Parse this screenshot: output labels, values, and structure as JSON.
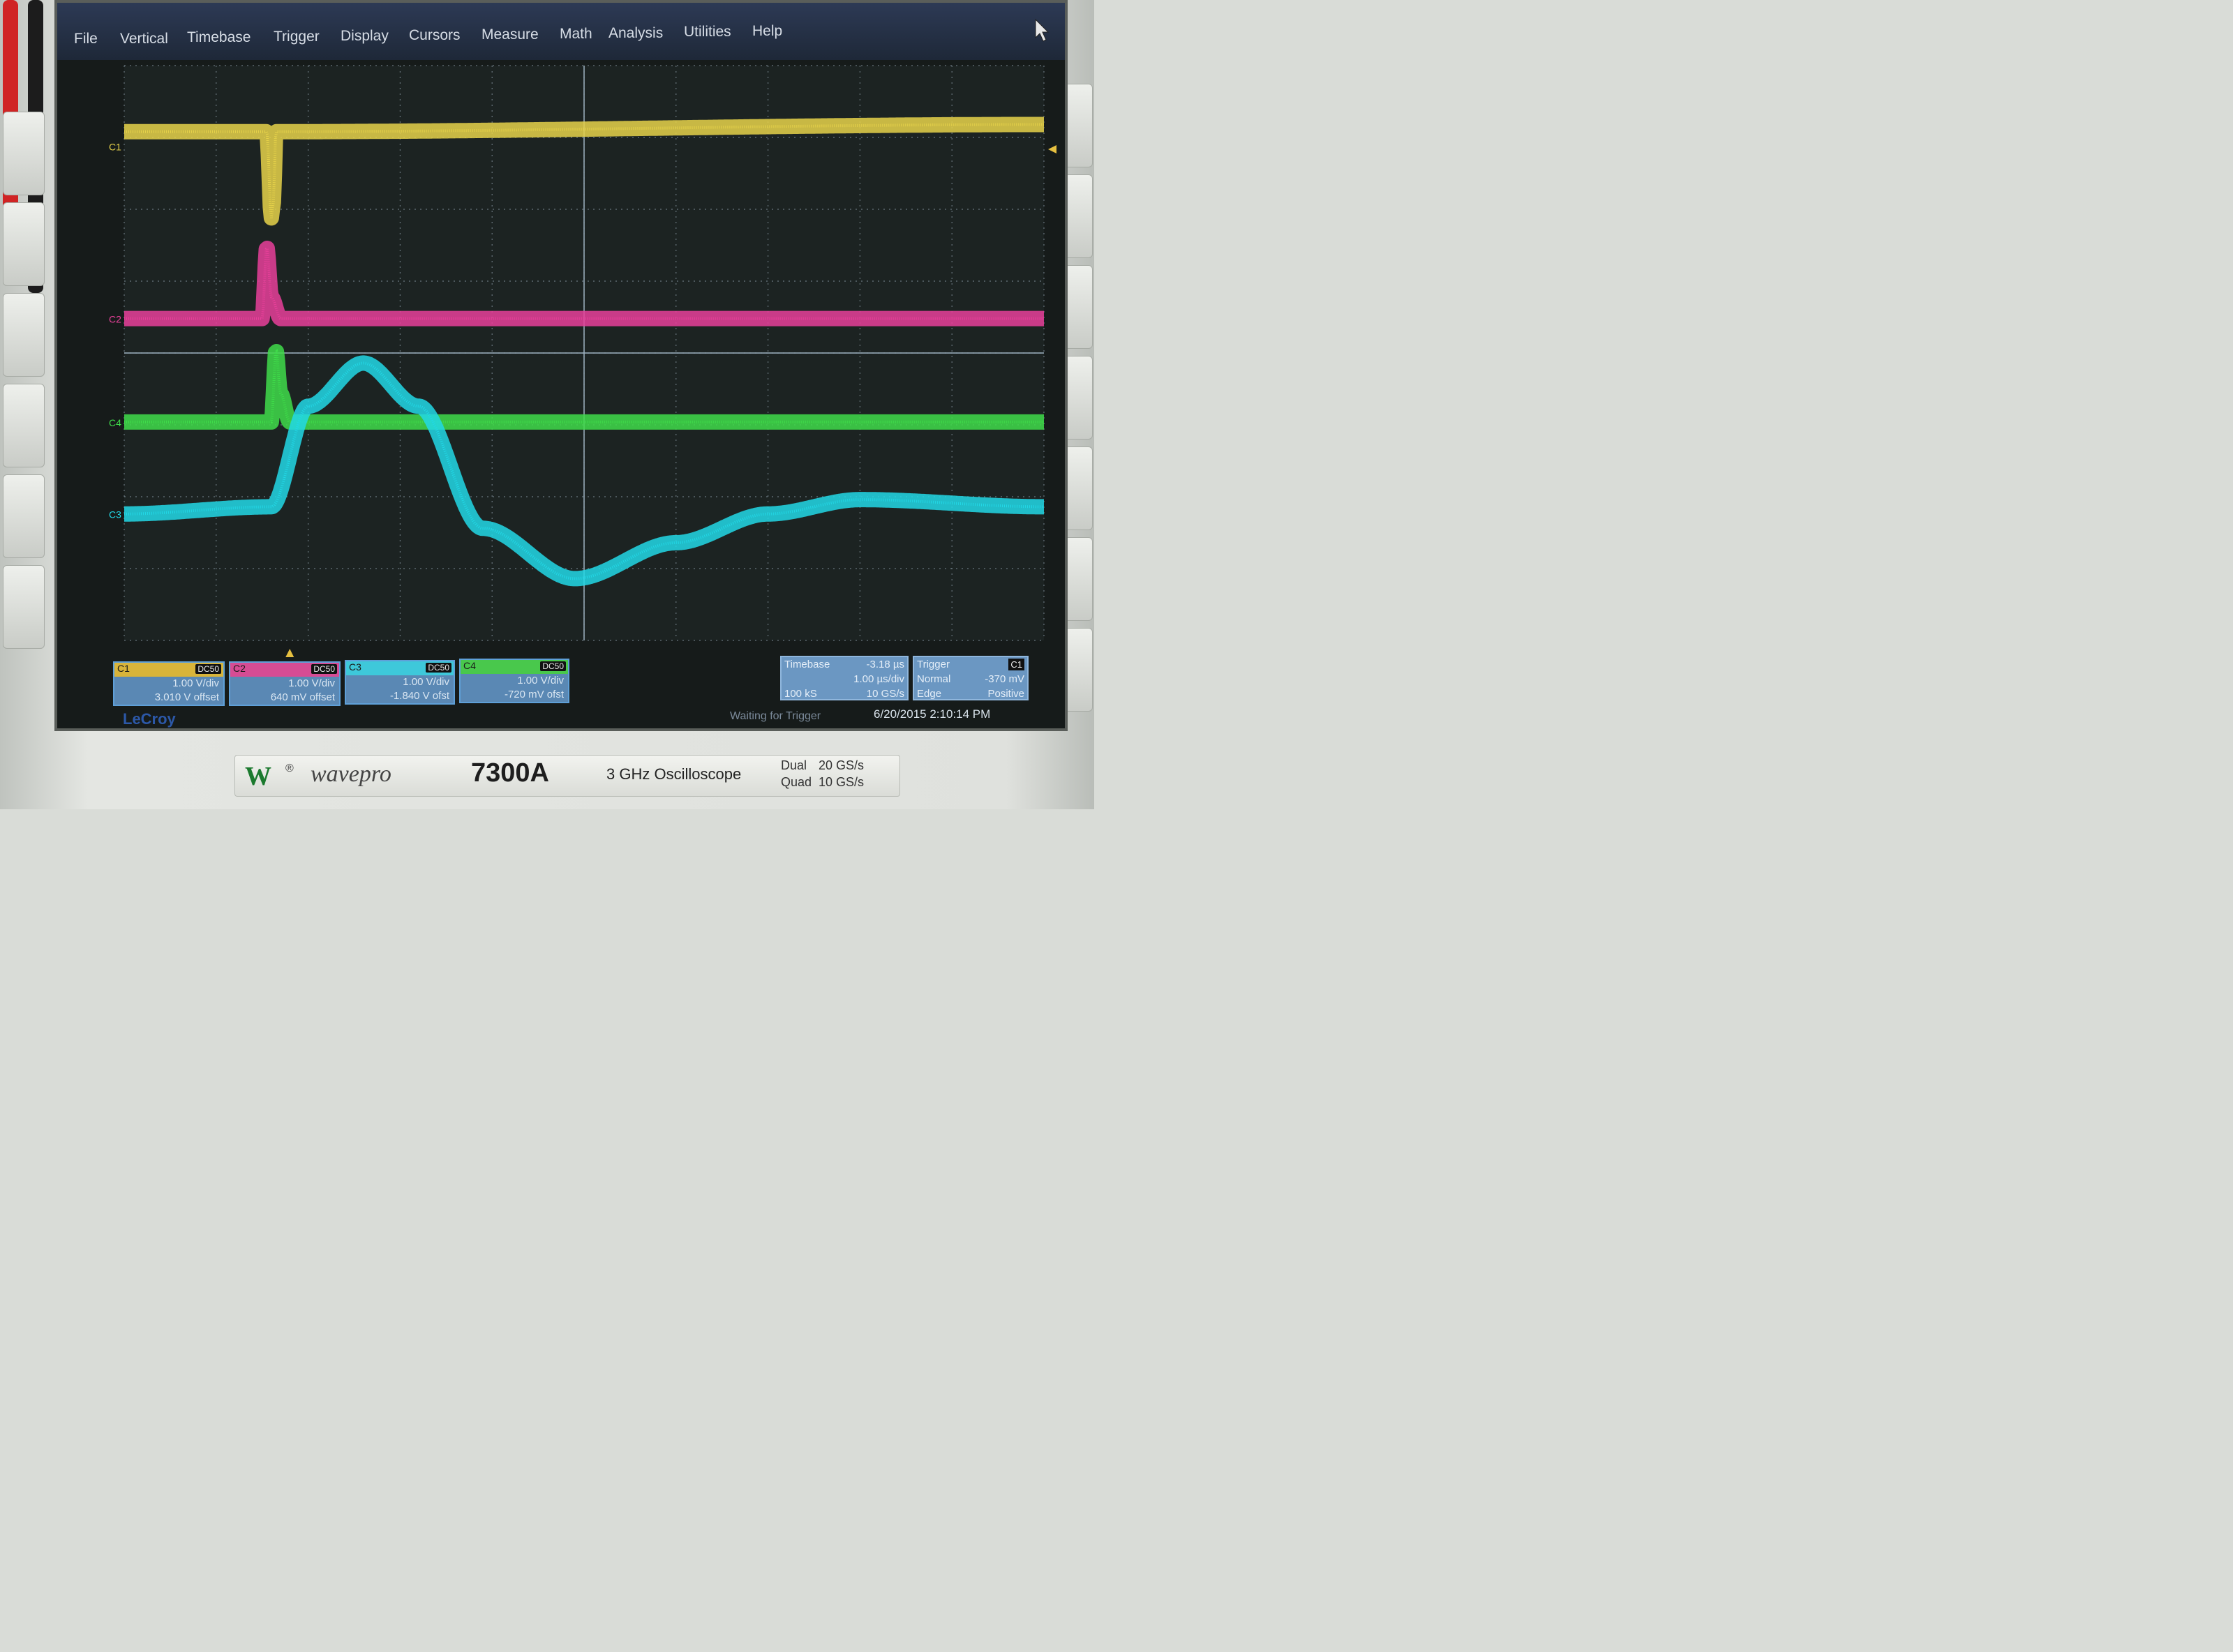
{
  "menu": {
    "items": [
      "File",
      "Vertical",
      "Timebase",
      "Trigger",
      "Display",
      "Cursors",
      "Measure",
      "Math",
      "Analysis",
      "Utilities",
      "Help"
    ]
  },
  "channels": [
    {
      "id": "C1",
      "coupling": "DC50",
      "scale": "1.00 V/div",
      "offset": "3.010 V offset",
      "color": "#e6d24a"
    },
    {
      "id": "C2",
      "coupling": "DC50",
      "scale": "1.00 V/div",
      "offset": "640 mV offset",
      "color": "#e8409a"
    },
    {
      "id": "C3",
      "coupling": "DC50",
      "scale": "1.00 V/div",
      "offset": "-1.840 V ofst",
      "color": "#22d8e6"
    },
    {
      "id": "C4",
      "coupling": "DC50",
      "scale": "1.00 V/div",
      "offset": "-720 mV ofst",
      "color": "#3fdc4a"
    }
  ],
  "timebase": {
    "label": "Timebase",
    "delay": "-3.18 µs",
    "scale": "1.00 µs/div",
    "samples": "100 kS",
    "rate": "10 GS/s"
  },
  "trigger": {
    "label": "Trigger",
    "source": "C1",
    "mode": "Normal",
    "level": "-370 mV",
    "type": "Edge",
    "slope": "Positive"
  },
  "brand": "LeCroy",
  "status": "Waiting for Trigger",
  "datetime": "6/20/2015 2:10:14 PM",
  "badge": {
    "logo": "W",
    "registered": "®",
    "series": "wavepro",
    "model": "7300A",
    "description": "3 GHz Oscilloscope",
    "dual_label": "Dual",
    "dual_rate": "20 GS/s",
    "quad_label": "Quad",
    "quad_rate": "10 GS/s"
  },
  "chart_data": {
    "type": "line",
    "grid": true,
    "x_divisions": 10,
    "y_divisions": 8,
    "series": [
      {
        "name": "C1",
        "x": [
          0,
          1.55,
          1.6,
          1.62,
          1.65,
          10
        ],
        "y": [
          0.2,
          0.2,
          -1.0,
          -0.8,
          0.2,
          0.3
        ]
      },
      {
        "name": "C2",
        "x": [
          0,
          1.5,
          1.55,
          1.6,
          1.7,
          10
        ],
        "y": [
          0,
          0,
          1.0,
          0.3,
          0,
          0
        ]
      },
      {
        "name": "C4",
        "x": [
          0,
          1.6,
          1.65,
          1.7,
          1.8,
          10
        ],
        "y": [
          0,
          0,
          1.0,
          0.4,
          0,
          0
        ]
      },
      {
        "name": "C3",
        "x": [
          0,
          1.6,
          2.0,
          2.6,
          3.2,
          3.9,
          4.9,
          6.0,
          7.0,
          8.0,
          10
        ],
        "y": [
          0,
          0.1,
          1.5,
          2.1,
          1.5,
          -0.2,
          -0.9,
          -0.4,
          0.0,
          0.2,
          0.1
        ]
      }
    ]
  }
}
